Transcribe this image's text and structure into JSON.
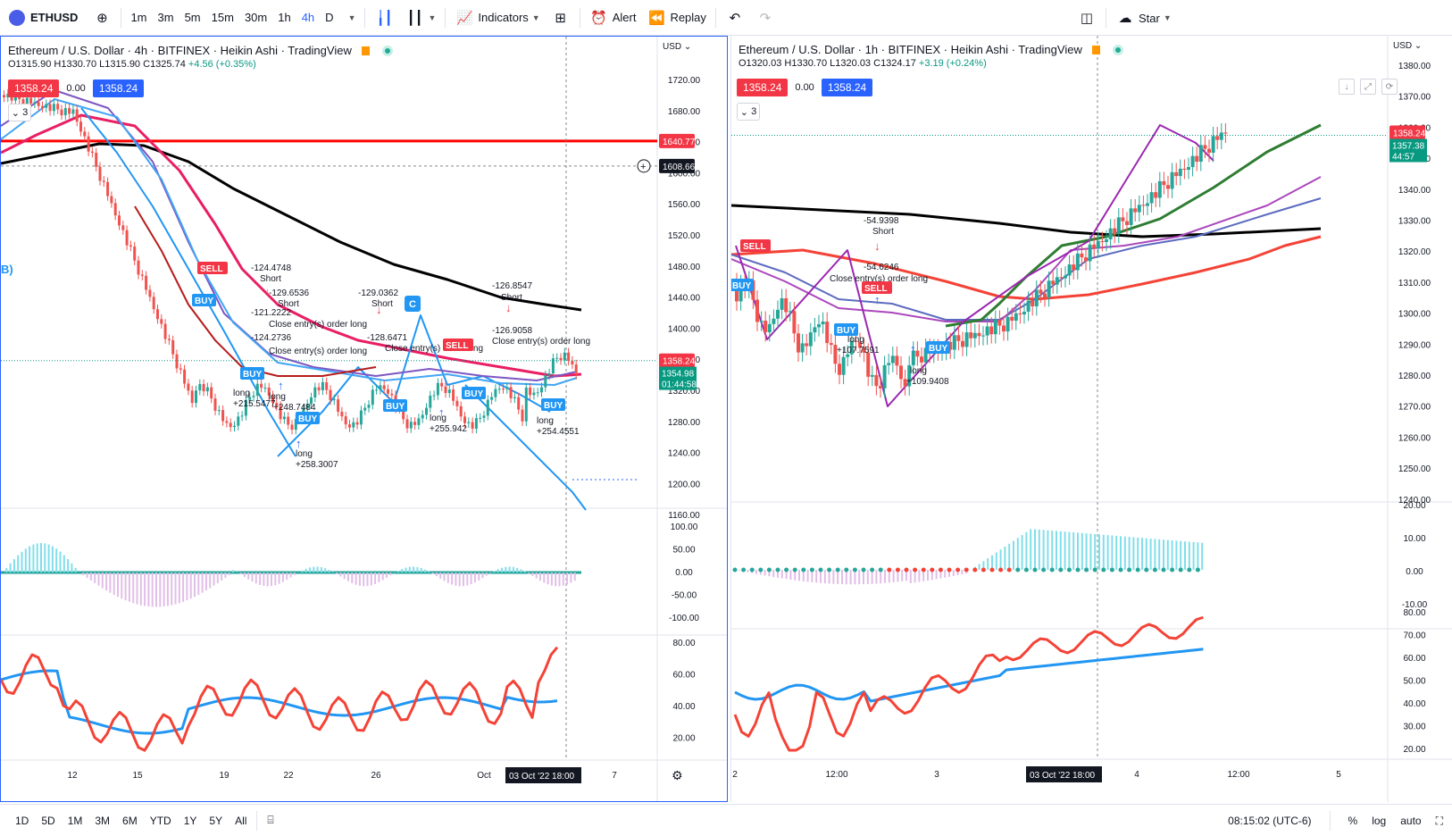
{
  "toolbar": {
    "symbol": "ETHUSD",
    "intervals": [
      "1m",
      "3m",
      "5m",
      "15m",
      "30m",
      "1h",
      "4h",
      "D"
    ],
    "active_interval": "4h",
    "indicators": "Indicators",
    "alert": "Alert",
    "replay": "Replay",
    "layout_name": "Star"
  },
  "left_chart": {
    "title": "Ethereum / U.S. Dollar · 4h · BITFINEX · Heikin Ashi · TradingView",
    "ohlc": {
      "o": "O1315.90",
      "h": "H1330.70",
      "l": "L1315.90",
      "c": "C1325.74",
      "chg": "+4.56 (+0.35%)"
    },
    "bid": "1358.24",
    "spread": "0.00",
    "ask": "1358.24",
    "collapse_count": "3",
    "currency": "USD",
    "price_ticks": [
      "1720.00",
      "1680.00",
      "1640.00",
      "1600.00",
      "1560.00",
      "1520.00",
      "1480.00",
      "1440.00",
      "1400.00",
      "1360.00",
      "1320.00",
      "1280.00",
      "1240.00",
      "1200.00",
      "1160.00"
    ],
    "price_tags": {
      "red_line": "1640.77",
      "crosshair": "1608.66",
      "last": "1358.24",
      "last2": "1354.98",
      "countdown": "01:44:58"
    },
    "osc_ticks": [
      "100.00",
      "50.00",
      "0.00",
      "-50.00",
      "-100.00"
    ],
    "rsi_ticks": [
      "80.00",
      "60.00",
      "40.00",
      "20.00"
    ],
    "time_ticks": [
      "12",
      "15",
      "19",
      "22",
      "26",
      "Oct",
      "7"
    ],
    "cursor_time": "03 Oct '22   18:00",
    "annotations": [
      {
        "text": "-124.4748"
      },
      {
        "text": "Short"
      },
      {
        "text": "-129.6536"
      },
      {
        "text": "Short"
      },
      {
        "text": "-121.2222"
      },
      {
        "text": "Close entry(s) order long"
      },
      {
        "text": "-124.2736"
      },
      {
        "text": "Close entry(s) order long"
      },
      {
        "text": "-129.0362"
      },
      {
        "text": "Short"
      },
      {
        "text": "-128.6471"
      },
      {
        "text": "Close entry(s) order long"
      },
      {
        "text": "-126.8547"
      },
      {
        "text": "Short"
      },
      {
        "text": "-126.9058"
      },
      {
        "text": "Close entry(s) order long"
      },
      {
        "text": "long"
      },
      {
        "text": "+215.5477"
      },
      {
        "text": "long"
      },
      {
        "text": "+248.7484"
      },
      {
        "text": "long"
      },
      {
        "text": "+258.3007"
      },
      {
        "text": "long"
      },
      {
        "text": "+255.942"
      },
      {
        "text": "long"
      },
      {
        "text": "+254.4551"
      }
    ],
    "badges": {
      "sell": "SELL",
      "buy": "BUY",
      "c": "C",
      "b": "B)"
    }
  },
  "right_chart": {
    "title": "Ethereum / U.S. Dollar · 1h · BITFINEX · Heikin Ashi · TradingView",
    "ohlc": {
      "o": "O1320.03",
      "h": "H1330.70",
      "l": "L1320.03",
      "c": "C1324.17",
      "chg": "+3.19 (+0.24%)"
    },
    "bid": "1358.24",
    "spread": "0.00",
    "ask": "1358.24",
    "collapse_count": "3",
    "currency": "USD",
    "price_ticks": [
      "1380.00",
      "1370.00",
      "1360.00",
      "1350.00",
      "1340.00",
      "1330.00",
      "1320.00",
      "1310.00",
      "1300.00",
      "1290.00",
      "1280.00",
      "1270.00",
      "1260.00",
      "1250.00",
      "1240.00"
    ],
    "price_tags": {
      "last": "1358.24",
      "last2": "1357.38",
      "countdown": "44:57"
    },
    "osc_ticks": [
      "20.00",
      "10.00",
      "0.00",
      "-10.00"
    ],
    "rsi_ticks": [
      "80.00",
      "70.00",
      "60.00",
      "50.00",
      "40.00",
      "30.00",
      "20.00"
    ],
    "time_ticks": [
      "2",
      "12:00",
      "3",
      "12:00",
      "4",
      "12:00",
      "5"
    ],
    "cursor_time": "03 Oct '22   18:00",
    "annotations": [
      {
        "text": "-54.9398"
      },
      {
        "text": "Short"
      },
      {
        "text": "-54.6246"
      },
      {
        "text": "Close entry(s) order long"
      },
      {
        "text": "long"
      },
      {
        "text": "+107.7591"
      },
      {
        "text": "long"
      },
      {
        "text": "+109.9408"
      }
    ],
    "badges": {
      "sell": "SELL",
      "buy": "BUY"
    }
  },
  "bottombar": {
    "ranges": [
      "1D",
      "5D",
      "1M",
      "3M",
      "6M",
      "YTD",
      "1Y",
      "5Y",
      "All"
    ],
    "clock": "08:15:02 (UTC-6)",
    "pct": "%",
    "log": "log",
    "auto": "auto"
  },
  "colors": {
    "up": "#26a69a",
    "down": "#ef5350",
    "accent": "#2962ff",
    "red_line": "#ff0000"
  }
}
